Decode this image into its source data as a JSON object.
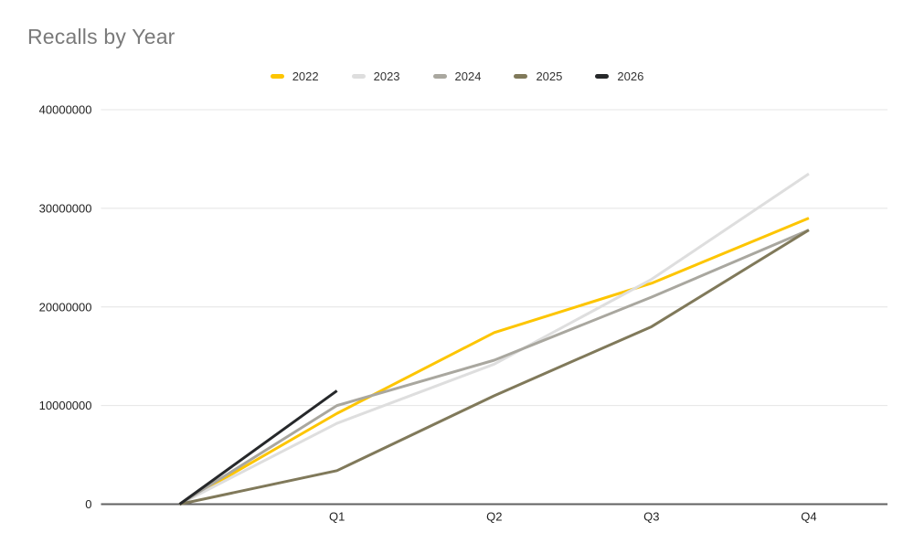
{
  "chart_data": {
    "type": "line",
    "title": "Recalls by Year",
    "categories": [
      "",
      "Q1",
      "Q2",
      "Q3",
      "Q4"
    ],
    "series": [
      {
        "name": "2022",
        "color": "#fdc500",
        "values": [
          0,
          9200000,
          17400000,
          22400000,
          29000000
        ]
      },
      {
        "name": "2023",
        "color": "#dedede",
        "values": [
          0,
          8200000,
          14200000,
          22800000,
          33500000
        ]
      },
      {
        "name": "2024",
        "color": "#a9a79f",
        "values": [
          0,
          10000000,
          14600000,
          21000000,
          27800000
        ]
      },
      {
        "name": "2025",
        "color": "#80795a",
        "values": [
          0,
          3400000,
          11000000,
          18000000,
          27800000
        ]
      },
      {
        "name": "2026",
        "color": "#26282a",
        "values": [
          0,
          11500000,
          null,
          null,
          null
        ]
      }
    ],
    "yticks": [
      0,
      10000000,
      20000000,
      30000000,
      40000000
    ],
    "ytick_labels": [
      "0",
      "10000000",
      "20000000",
      "30000000",
      "40000000"
    ],
    "ylim": [
      0,
      40000000
    ],
    "xlabel": "",
    "ylabel": "",
    "grid": true,
    "legend_position": "top"
  },
  "style": {
    "title_color": "#7a7a7a",
    "grid_color": "#e4e4e4",
    "baseline_color": "#616161",
    "tick_label_color": "#222222",
    "legend_text_color": "#333333",
    "background": "#ffffff"
  }
}
